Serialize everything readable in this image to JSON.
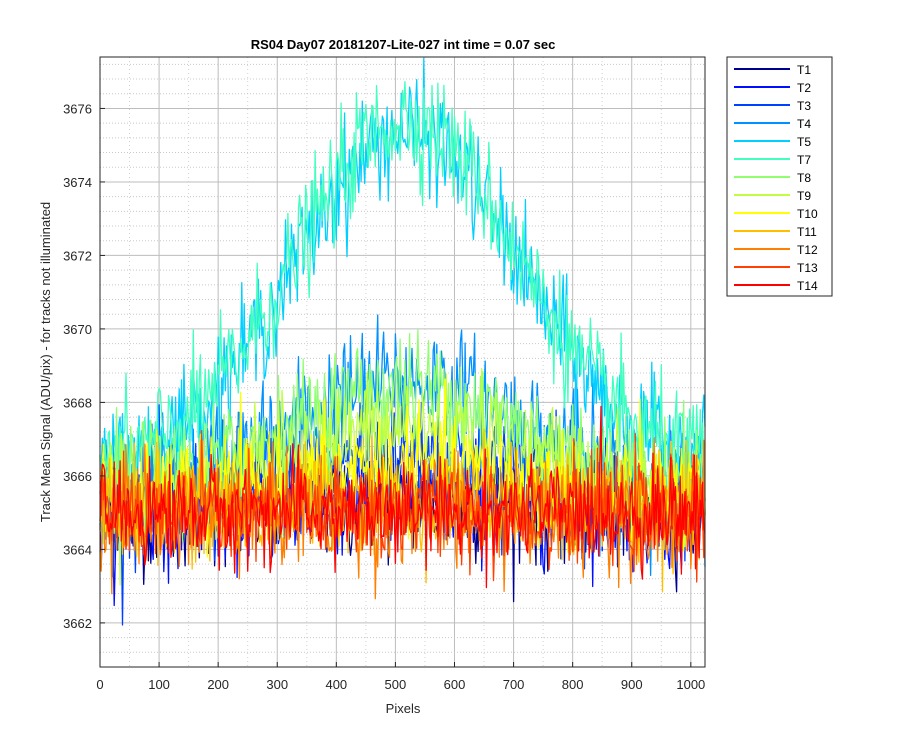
{
  "chart_data": {
    "type": "line",
    "title": "RS04 Day07 20181207-Lite-027 int time = 0.07 sec",
    "xlabel": "Pixels",
    "ylabel": "Track Mean Signal (ADU/pix) - for tracks not illuminated",
    "xlim": [
      0,
      1024
    ],
    "ylim": [
      3660.8,
      3677.4
    ],
    "xticks": [
      0,
      100,
      200,
      300,
      400,
      500,
      600,
      700,
      800,
      900,
      1000
    ],
    "yticks": [
      3662,
      3664,
      3666,
      3668,
      3670,
      3672,
      3674,
      3676
    ],
    "grid": true,
    "minor_grid": true,
    "legend_position": "outside-top-right",
    "series": [
      {
        "name": "T1",
        "color": "#00008f",
        "baseline": 3665,
        "peak": 0.3,
        "noise": 1.0
      },
      {
        "name": "T2",
        "color": "#0010ff",
        "baseline": 3665,
        "peak": 0.5,
        "noise": 1.0
      },
      {
        "name": "T3",
        "color": "#0040ff",
        "baseline": 3665.2,
        "peak": 1.5,
        "noise": 1.1
      },
      {
        "name": "T4",
        "color": "#0090ff",
        "baseline": 3665.6,
        "peak": 3.0,
        "noise": 1.1
      },
      {
        "name": "T5",
        "color": "#00cfff",
        "baseline": 3666.2,
        "peak": 9.2,
        "noise": 1.0
      },
      {
        "name": "T7",
        "color": "#40ffbf",
        "baseline": 3666.2,
        "peak": 9.5,
        "noise": 1.0
      },
      {
        "name": "T8",
        "color": "#8fff70",
        "baseline": 3665.8,
        "peak": 2.6,
        "noise": 1.0
      },
      {
        "name": "T9",
        "color": "#bfff40",
        "baseline": 3665.5,
        "peak": 1.8,
        "noise": 1.0
      },
      {
        "name": "T10",
        "color": "#ffff00",
        "baseline": 3665.3,
        "peak": 0.9,
        "noise": 1.0
      },
      {
        "name": "T11",
        "color": "#ffbf00",
        "baseline": 3665.1,
        "peak": 0.3,
        "noise": 1.0
      },
      {
        "name": "T12",
        "color": "#ff8000",
        "baseline": 3665.0,
        "peak": 0.0,
        "noise": 1.0
      },
      {
        "name": "T13",
        "color": "#ff4000",
        "baseline": 3665.0,
        "peak": 0.0,
        "noise": 0.9
      },
      {
        "name": "T14",
        "color": "#ff0000",
        "baseline": 3665.0,
        "peak": 0.0,
        "noise": 0.9
      }
    ],
    "peak_center": 520,
    "peak_width": 190
  }
}
